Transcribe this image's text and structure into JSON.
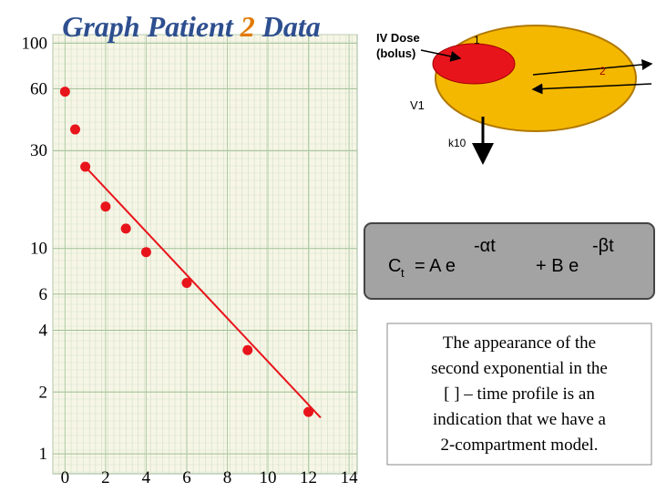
{
  "chart_data": {
    "type": "scatter",
    "title_parts": [
      "Graph Patient",
      "2",
      "Data"
    ],
    "x": [
      0,
      0.5,
      1,
      2,
      3,
      4,
      6,
      9,
      12
    ],
    "values": [
      58,
      38,
      25,
      16,
      12.5,
      9.6,
      6.8,
      3.2,
      1.6
    ],
    "color": "#e8141b",
    "fit_line": {
      "x": [
        1,
        12.6
      ],
      "values": [
        25,
        1.5
      ],
      "color": "#e8141b"
    },
    "xlim": [
      -0.6,
      14.4
    ],
    "xticks": [
      0,
      2,
      4,
      6,
      8,
      10,
      12,
      14
    ],
    "ylim": [
      0.8,
      110
    ],
    "yticks": [
      1,
      2,
      4,
      6,
      10,
      30,
      60,
      100
    ],
    "log_y": true,
    "grid": true
  },
  "diagram": {
    "dose_label": [
      "IV Dose",
      "(bolus)"
    ],
    "central_label": "1",
    "peripheral_label": "2",
    "volume_label": "V1",
    "elimination_label": "k10"
  },
  "formula": {
    "c": "C",
    "sub": "t",
    "eq_a": "= A e",
    "exp_a": "-αt",
    "plus_b": "+ B e",
    "exp_b": "-βt"
  },
  "note": {
    "lines": [
      "The appearance of the",
      "second exponential in the",
      "[ ] – time profile is an",
      "indication that we have a",
      "2-compartment model."
    ]
  }
}
